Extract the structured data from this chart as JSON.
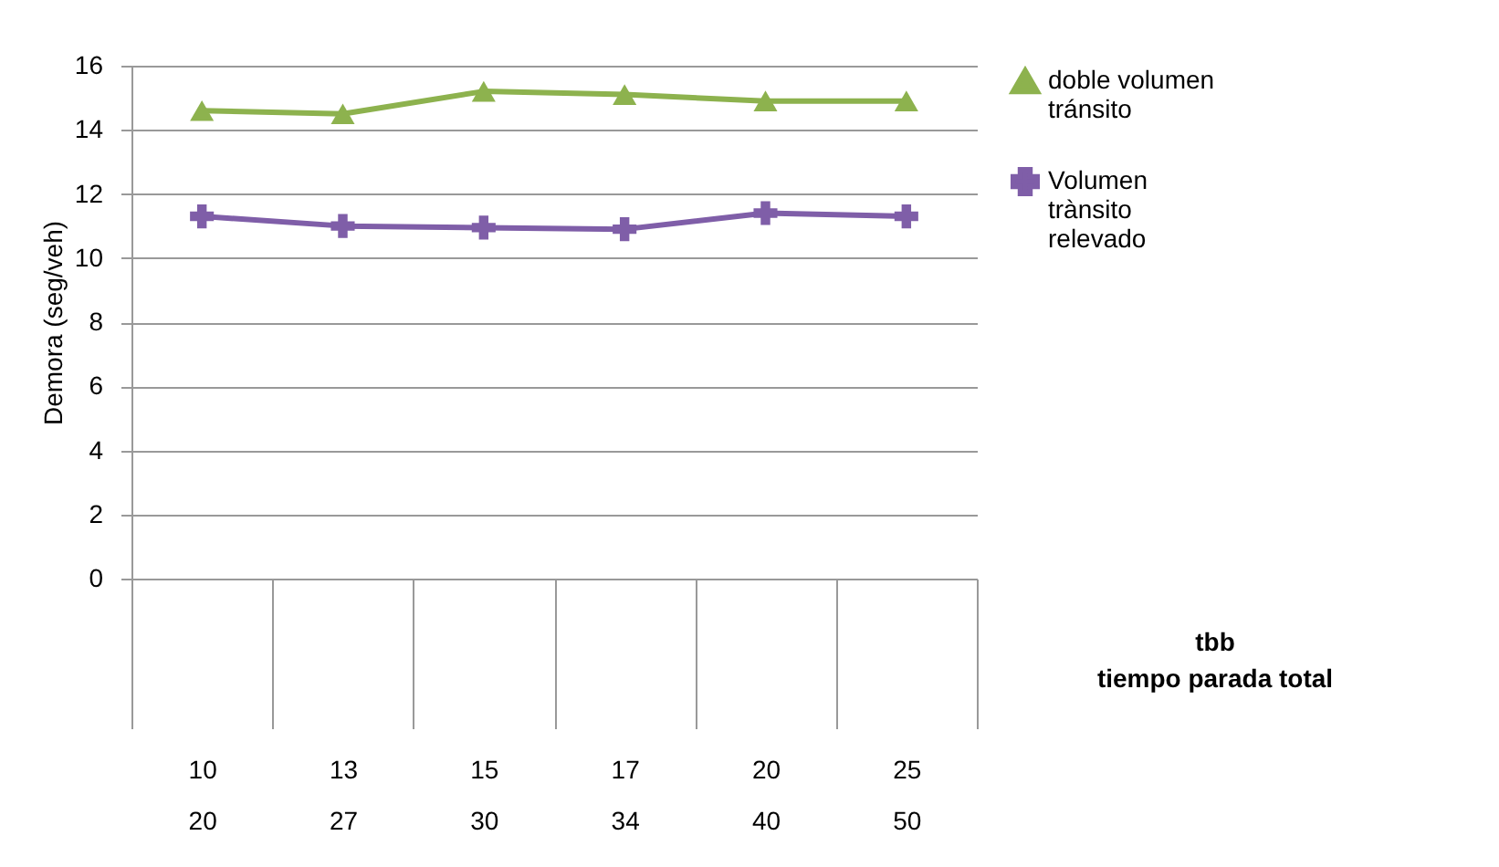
{
  "chart_data": {
    "type": "line",
    "ylabel": "Demora (seg/veh)",
    "xlabel": "tbb\ntiempo parada total",
    "categories": [
      "10\n20",
      "13\n27",
      "15\n30",
      "17\n34",
      "20\n40",
      "25\n50"
    ],
    "series": [
      {
        "name": "doble  volumen tránsito",
        "color": "#8db24e",
        "marker": "triangle",
        "values": [
          14.6,
          14.5,
          15.2,
          15.1,
          14.9,
          14.9
        ]
      },
      {
        "name": "Volumen trànsito relevado",
        "color": "#7f5ea8",
        "marker": "cross",
        "values": [
          11.3,
          11.0,
          10.95,
          10.9,
          11.4,
          11.3
        ]
      }
    ],
    "ylim": [
      0,
      16
    ],
    "yticks": [
      0,
      2,
      4,
      6,
      8,
      10,
      12,
      14,
      16
    ],
    "grid": "y",
    "legend": "right"
  }
}
